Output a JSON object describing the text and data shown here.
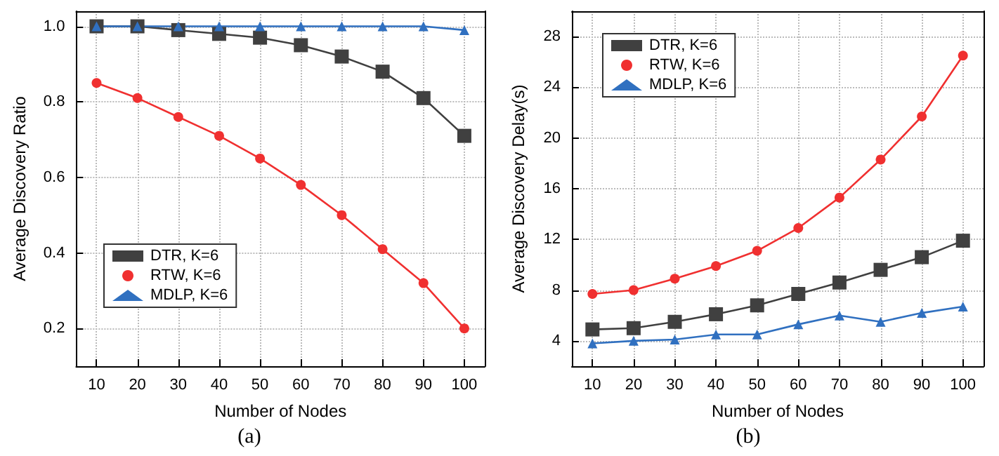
{
  "chart_data": [
    {
      "type": "line",
      "xlabel": "Number of Nodes",
      "ylabel": "Average Discovery Ratio",
      "annotations": [
        "(a)"
      ],
      "x": [
        10,
        20,
        30,
        40,
        50,
        60,
        70,
        80,
        90,
        100
      ],
      "xlim": [
        5,
        105
      ],
      "xticks": [
        10,
        20,
        30,
        40,
        50,
        60,
        70,
        80,
        90,
        100
      ],
      "ylim": [
        0.1,
        1.04
      ],
      "yticks": [
        0.2,
        0.4,
        0.6,
        0.8,
        {
          "value": 1,
          "label": "1.0"
        }
      ],
      "grid": true,
      "legend": "bottom left",
      "line_style": "solid",
      "series": [
        {
          "name": "DTR, K=6",
          "color": "#404040",
          "marker": "square",
          "values": [
            1.0,
            1.0,
            0.99,
            0.98,
            0.97,
            0.95,
            0.92,
            0.88,
            0.81,
            0.71
          ]
        },
        {
          "name": "RTW, K=6",
          "color": "#f03030",
          "marker": "circle",
          "values": [
            0.85,
            0.81,
            0.76,
            0.71,
            0.65,
            0.58,
            0.5,
            0.41,
            0.32,
            0.2
          ]
        },
        {
          "name": "MDLP, K=6",
          "color": "#3070c0",
          "marker": "triangle",
          "values": [
            1,
            1,
            1,
            1,
            1,
            1,
            1,
            1,
            1,
            0.99
          ]
        }
      ]
    },
    {
      "type": "line",
      "xlabel": "Number of Nodes",
      "ylabel": "Average Discovery Delay(s)",
      "annotations": [
        "(b)"
      ],
      "x": [
        10,
        20,
        30,
        40,
        50,
        60,
        70,
        80,
        90,
        100
      ],
      "xlim": [
        5,
        105
      ],
      "xticks": [
        10,
        20,
        30,
        40,
        50,
        60,
        70,
        80,
        90,
        100
      ],
      "ylim": [
        2,
        30
      ],
      "yticks": [
        4,
        8,
        12,
        16,
        20,
        24,
        28
      ],
      "grid": true,
      "legend": "top left",
      "line_style": "solid",
      "series": [
        {
          "name": "DTR, K=6",
          "color": "#404040",
          "marker": "square",
          "values": [
            4.9,
            5.0,
            5.5,
            6.1,
            6.8,
            7.7,
            8.6,
            9.6,
            10.6,
            11.9
          ]
        },
        {
          "name": "RTW, K=6",
          "color": "#f03030",
          "marker": "circle",
          "values": [
            7.7,
            8.0,
            8.9,
            9.9,
            11.1,
            12.9,
            15.3,
            18.3,
            21.7,
            26.5
          ]
        },
        {
          "name": "MDLP, K=6",
          "color": "#3070c0",
          "marker": "triangle",
          "values": [
            3.8,
            4.0,
            4.1,
            4.5,
            4.5,
            5.3,
            6.0,
            5.5,
            6.2,
            6.7
          ]
        }
      ]
    }
  ]
}
